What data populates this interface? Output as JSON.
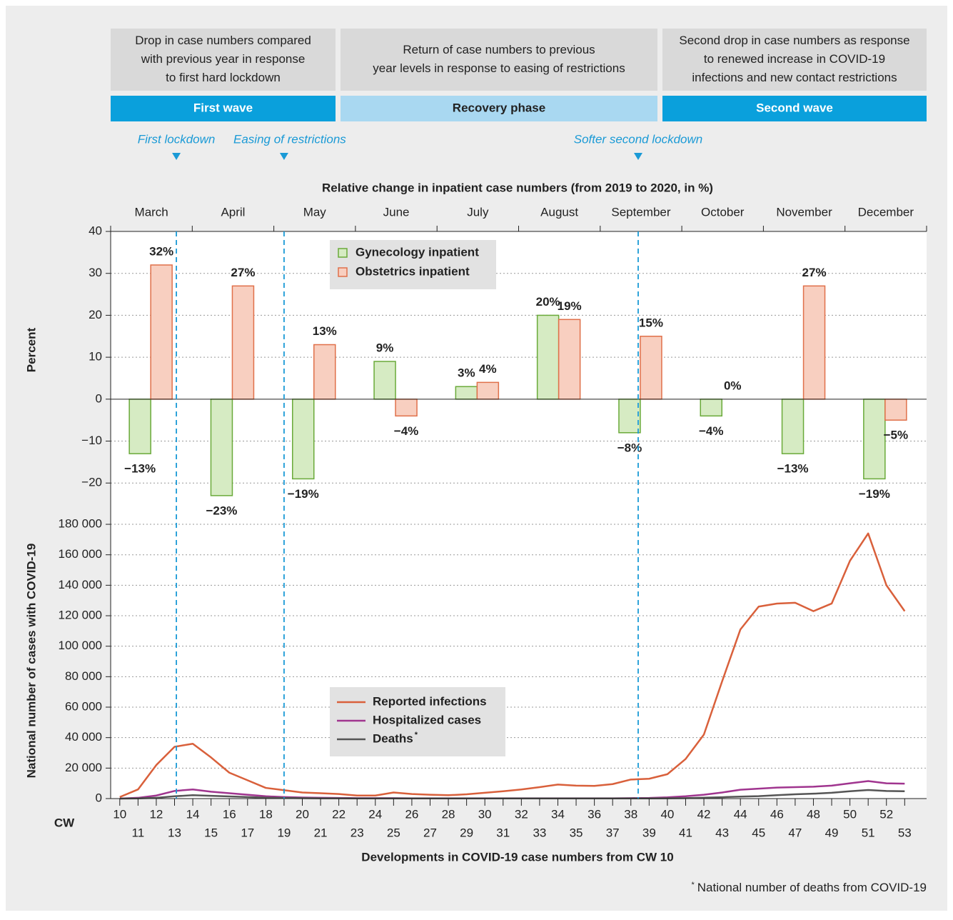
{
  "phases": [
    {
      "lines": [
        "Drop in case numbers compared",
        "with previous year in response",
        "to first hard lockdown"
      ],
      "label": "First wave"
    },
    {
      "lines": [
        "Return of case numbers to previous",
        "year levels in response to easing of restrictions"
      ],
      "label": "Recovery phase"
    },
    {
      "lines": [
        "Second drop in case numbers as response",
        "to renewed increase in COVID-19",
        "infections and new contact restrictions"
      ],
      "label": "Second wave"
    }
  ],
  "events": [
    {
      "label": "First lockdown",
      "cw": 13.1
    },
    {
      "label": "Easing of restrictions",
      "cw": 19
    },
    {
      "label": "Softer second lockdown",
      "cw": 38.4
    }
  ],
  "footnote_mark": "*",
  "footnote": "National number of deaths from COVID-19",
  "chart_data": [
    {
      "type": "bar",
      "title": "Relative change in inpatient case numbers (from 2019 to 2020, in %)",
      "ylabel": "Percent",
      "categories": [
        "March",
        "April",
        "May",
        "June",
        "July",
        "August",
        "September",
        "October",
        "November",
        "December"
      ],
      "series": [
        {
          "name": "Gynecology inpatient",
          "color": "#6aaa3a",
          "fill": "#d6ebc3",
          "values": [
            -13,
            -23,
            -19,
            9,
            3,
            20,
            -8,
            -4,
            -13,
            -19
          ],
          "value_labels": [
            "−13%",
            "−23%",
            "−19%",
            "9%",
            "3%",
            "20%",
            "−8%",
            "−4%",
            "−13%",
            "−19%"
          ]
        },
        {
          "name": "Obstetrics inpatient",
          "color": "#e0704a",
          "fill": "#f8cfc0",
          "values": [
            32,
            27,
            13,
            -4,
            4,
            19,
            15,
            0,
            27,
            -5
          ],
          "value_labels": [
            "32%",
            "27%",
            "13%",
            "−4%",
            "4%",
            "19%",
            "15%",
            "0%",
            "27%",
            "−5%"
          ]
        }
      ],
      "ylim": [
        -25,
        40
      ],
      "yticks": [
        {
          "value": -20,
          "label": "−20"
        },
        {
          "value": -10,
          "label": "−10"
        },
        0,
        10,
        20,
        30,
        40
      ],
      "grid": true
    },
    {
      "type": "line",
      "ylabel": "National number of cases with COVID-19",
      "xlabel": "Developments in COVID-19 case numbers from CW 10",
      "xaxis_name": "CW",
      "x": [
        10,
        11,
        12,
        13,
        14,
        15,
        16,
        17,
        18,
        19,
        20,
        21,
        22,
        23,
        24,
        25,
        26,
        27,
        28,
        29,
        30,
        31,
        32,
        33,
        34,
        35,
        36,
        37,
        38,
        39,
        40,
        41,
        42,
        43,
        44,
        45,
        46,
        47,
        48,
        49,
        50,
        51,
        52,
        53
      ],
      "series": [
        {
          "name": "Reported infections",
          "color": "#d9603b",
          "values": [
            1000,
            6000,
            22000,
            34000,
            36000,
            27000,
            17000,
            12000,
            7000,
            5500,
            4000,
            3500,
            3000,
            2000,
            2000,
            4000,
            3000,
            2500,
            2200,
            2800,
            3800,
            4800,
            6000,
            7500,
            9200,
            8500,
            8300,
            9500,
            12500,
            13000,
            16000,
            26000,
            42000,
            77000,
            111000,
            126000,
            128000,
            128500,
            123000,
            128000,
            156000,
            174000,
            140000,
            123000
          ]
        },
        {
          "name": "Hospitalized cases",
          "color": "#a0358f",
          "values": [
            0,
            500,
            2000,
            5000,
            6000,
            4500,
            3500,
            2500,
            1500,
            1000,
            700,
            500,
            400,
            300,
            300,
            300,
            200,
            200,
            200,
            200,
            200,
            200,
            200,
            200,
            200,
            200,
            200,
            200,
            300,
            400,
            800,
            1500,
            2500,
            4000,
            5800,
            6500,
            7200,
            7500,
            7800,
            8500,
            10000,
            11500,
            10000,
            9800
          ]
        },
        {
          "name": "Deaths",
          "color": "#555555",
          "values": [
            0,
            100,
            500,
            1500,
            2200,
            1800,
            1400,
            1000,
            600,
            400,
            300,
            200,
            150,
            100,
            100,
            100,
            100,
            100,
            100,
            100,
            100,
            100,
            100,
            100,
            100,
            100,
            100,
            100,
            100,
            100,
            150,
            300,
            600,
            900,
            1300,
            1600,
            2200,
            2800,
            3200,
            3800,
            4800,
            5600,
            5000,
            4800
          ]
        }
      ],
      "xlim": [
        9.5,
        54.2
      ],
      "xticks": [
        10,
        11,
        12,
        13,
        14,
        15,
        16,
        17,
        18,
        19,
        20,
        21,
        22,
        23,
        24,
        25,
        26,
        27,
        28,
        29,
        30,
        31,
        32,
        33,
        34,
        35,
        36,
        37,
        38,
        39,
        40,
        41,
        42,
        43,
        44,
        45,
        46,
        47,
        48,
        49,
        50,
        51,
        52,
        53
      ],
      "ylim": [
        0,
        190000
      ],
      "yticks": [
        0,
        {
          "value": 20000,
          "label": "20 000"
        },
        {
          "value": 40000,
          "label": "40 000"
        },
        {
          "value": 60000,
          "label": "60 000"
        },
        {
          "value": 80000,
          "label": "80 000"
        },
        {
          "value": 100000,
          "label": "100 000"
        },
        {
          "value": 120000,
          "label": "120 000"
        },
        {
          "value": 140000,
          "label": "140 000"
        },
        {
          "value": 160000,
          "label": "160 000"
        },
        {
          "value": 180000,
          "label": "180 000"
        }
      ],
      "grid": true
    }
  ]
}
